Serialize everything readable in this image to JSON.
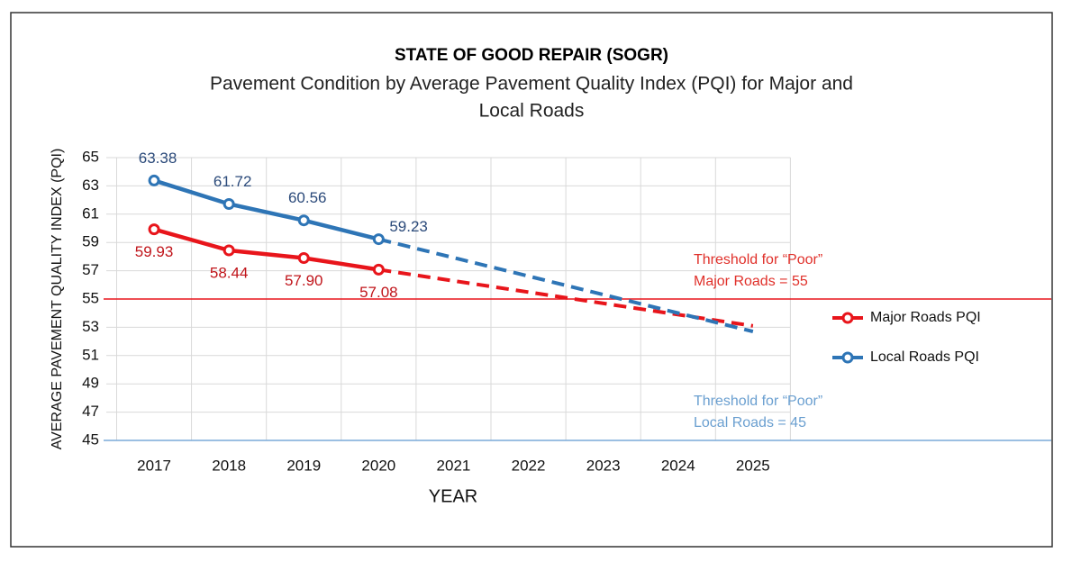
{
  "chart_data": {
    "type": "line",
    "title": "STATE OF GOOD REPAIR (SOGR)",
    "subtitle": [
      "Pavement Condition by Average Pavement Quality Index (PQI) for Major and",
      "Local Roads"
    ],
    "x_label": "YEAR",
    "y_label": "AVERAGE PAVEMENT QUALITY INDEX (PQI)",
    "categories": [
      "2017",
      "2018",
      "2019",
      "2020",
      "2021",
      "2022",
      "2023",
      "2024",
      "2025"
    ],
    "series": [
      {
        "name": "Major Roads PQI",
        "color": "#e8151b",
        "label_color": "#c0141a",
        "values": [
          59.93,
          58.44,
          57.9,
          57.08,
          null,
          null,
          null,
          null,
          null
        ],
        "value_labels": [
          "59.93",
          "58.44",
          "57.90",
          "57.08",
          null,
          null,
          null,
          null,
          null
        ],
        "projection": [
          null,
          null,
          null,
          null,
          null,
          null,
          null,
          null,
          53.1
        ]
      },
      {
        "name": "Local Roads PQI",
        "color": "#2e75b6",
        "label_color": "#2b4a7a",
        "values": [
          63.38,
          61.72,
          60.56,
          59.23,
          null,
          null,
          null,
          null,
          null
        ],
        "value_labels": [
          "63.38",
          "61.72",
          "60.56",
          "59.23",
          null,
          null,
          null,
          null,
          null
        ],
        "projection": [
          null,
          null,
          null,
          null,
          null,
          null,
          null,
          null,
          52.7
        ]
      }
    ],
    "annotations": [
      {
        "lines": [
          "Threshold for “Poor”",
          "Major Roads = 55"
        ],
        "value": 55,
        "color": "#e8151b",
        "text_color": "#e0302a"
      },
      {
        "lines": [
          "Threshold for “Poor”",
          "Local Roads = 45"
        ],
        "value": 45,
        "color": "#7aaad8",
        "text_color": "#6a9fd0"
      }
    ],
    "ylim": [
      45,
      65
    ],
    "yticks": [
      45,
      47,
      49,
      51,
      53,
      55,
      57,
      59,
      61,
      63,
      65
    ],
    "grid": true,
    "legend": "right"
  }
}
